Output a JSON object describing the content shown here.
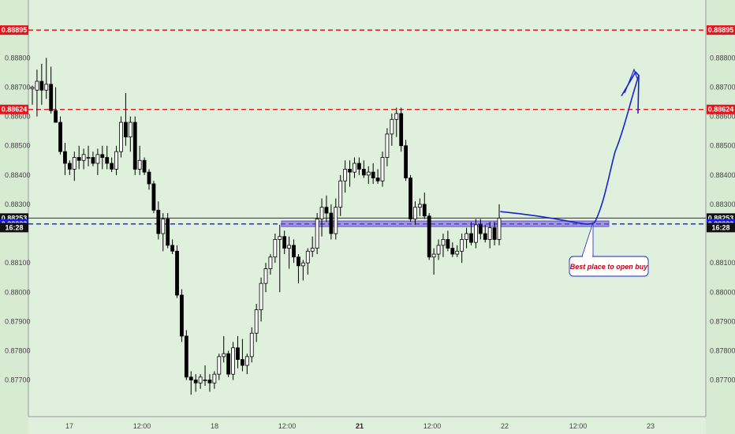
{
  "chart_data": {
    "type": "candlestick",
    "title": "",
    "colors": {
      "background": "#dff0dc",
      "bullish_body": "#ffffff",
      "bearish_body": "#000000",
      "wick": "#000000",
      "resistance": "#e8141a",
      "support": "#1a1ae8",
      "price_line": "#333333",
      "zone": "#6a4fd6",
      "projection": "#1a22cc"
    },
    "y_axis": {
      "ylim": [
        0.87645,
        0.88925
      ],
      "ticks": [
        "0.88800",
        "0.88700",
        "0.88600",
        "0.88500",
        "0.88400",
        "0.88300",
        "0.88100",
        "0.88000",
        "0.87900",
        "0.87800",
        "0.87700"
      ]
    },
    "x_axis": {
      "labels": [
        {
          "text": "17",
          "bold": false
        },
        {
          "text": "12:00",
          "bold": false
        },
        {
          "text": "18",
          "bold": false
        },
        {
          "text": "12:00",
          "bold": false
        },
        {
          "text": "21",
          "bold": true
        },
        {
          "text": "12:00",
          "bold": false
        },
        {
          "text": "22",
          "bold": false
        },
        {
          "text": "12:00",
          "bold": false
        },
        {
          "text": "23",
          "bold": false
        }
      ]
    },
    "levels": [
      {
        "name": "resistance-upper",
        "value": 0.88895,
        "label": "0.88895",
        "style": "dashed",
        "color": "#e8141a"
      },
      {
        "name": "resistance-lower",
        "value": 0.88624,
        "label": "0.88624",
        "style": "dashed",
        "color": "#e8141a"
      },
      {
        "name": "current-price",
        "value": 0.88253,
        "label": "0.88253",
        "style": "solid",
        "color": "#333333",
        "countdown": "16:28"
      },
      {
        "name": "support",
        "value": 0.88233,
        "label": "0.88233",
        "style": "dashed",
        "color": "#1a1ae8"
      }
    ],
    "annotation": {
      "text": "Best place to open buy"
    },
    "candles": [
      [
        0.88695,
        0.88705,
        0.8864,
        0.887
      ],
      [
        0.8869,
        0.8876,
        0.886,
        0.8872
      ],
      [
        0.8872,
        0.8878,
        0.8864,
        0.8869
      ],
      [
        0.8869,
        0.888,
        0.8866,
        0.8871
      ],
      [
        0.8871,
        0.8877,
        0.8861,
        0.8862
      ],
      [
        0.8862,
        0.887,
        0.8858,
        0.8858
      ],
      [
        0.8858,
        0.886,
        0.8847,
        0.8848
      ],
      [
        0.8848,
        0.8851,
        0.884,
        0.8844
      ],
      [
        0.8844,
        0.8845,
        0.884,
        0.8842
      ],
      [
        0.8842,
        0.8848,
        0.8838,
        0.8846
      ],
      [
        0.8846,
        0.885,
        0.8842,
        0.8845
      ],
      [
        0.8845,
        0.8849,
        0.8842,
        0.8847
      ],
      [
        0.8846,
        0.885,
        0.8843,
        0.8846
      ],
      [
        0.8846,
        0.8848,
        0.8843,
        0.8844
      ],
      [
        0.8844,
        0.8849,
        0.884,
        0.8847
      ],
      [
        0.8847,
        0.885,
        0.8842,
        0.8846
      ],
      [
        0.8846,
        0.885,
        0.8842,
        0.8844
      ],
      [
        0.8844,
        0.8846,
        0.8841,
        0.8842
      ],
      [
        0.8842,
        0.885,
        0.884,
        0.8848
      ],
      [
        0.8848,
        0.886,
        0.8846,
        0.8858
      ],
      [
        0.8858,
        0.8868,
        0.885,
        0.8853
      ],
      [
        0.8853,
        0.886,
        0.8848,
        0.8858
      ],
      [
        0.8858,
        0.886,
        0.884,
        0.8842
      ],
      [
        0.8842,
        0.885,
        0.884,
        0.8845
      ],
      [
        0.8845,
        0.8846,
        0.884,
        0.8841
      ],
      [
        0.8841,
        0.8842,
        0.8835,
        0.8837
      ],
      [
        0.8837,
        0.8838,
        0.8827,
        0.8828
      ],
      [
        0.8828,
        0.8831,
        0.8818,
        0.882
      ],
      [
        0.882,
        0.8827,
        0.8814,
        0.8825
      ],
      [
        0.8825,
        0.8827,
        0.8815,
        0.8816
      ],
      [
        0.8816,
        0.8818,
        0.8813,
        0.8814
      ],
      [
        0.8814,
        0.8816,
        0.8798,
        0.8799
      ],
      [
        0.8799,
        0.8801,
        0.8783,
        0.8785
      ],
      [
        0.8785,
        0.8787,
        0.877,
        0.8771
      ],
      [
        0.8771,
        0.8773,
        0.8765,
        0.877
      ],
      [
        0.877,
        0.8772,
        0.8766,
        0.8769
      ],
      [
        0.8769,
        0.8772,
        0.8767,
        0.8771
      ],
      [
        0.877,
        0.8775,
        0.8768,
        0.877
      ],
      [
        0.877,
        0.8772,
        0.8766,
        0.8769
      ],
      [
        0.8769,
        0.8773,
        0.8767,
        0.8772
      ],
      [
        0.8772,
        0.8779,
        0.877,
        0.8778
      ],
      [
        0.8778,
        0.8785,
        0.8776,
        0.8779
      ],
      [
        0.8779,
        0.878,
        0.8771,
        0.8772
      ],
      [
        0.8772,
        0.8783,
        0.877,
        0.8781
      ],
      [
        0.8781,
        0.8785,
        0.8774,
        0.8777
      ],
      [
        0.8777,
        0.8784,
        0.8773,
        0.8775
      ],
      [
        0.8775,
        0.8779,
        0.8772,
        0.8778
      ],
      [
        0.8778,
        0.8788,
        0.8776,
        0.8786
      ],
      [
        0.8786,
        0.8796,
        0.8783,
        0.8794
      ],
      [
        0.8794,
        0.8805,
        0.879,
        0.8803
      ],
      [
        0.8803,
        0.881,
        0.88,
        0.8808
      ],
      [
        0.8808,
        0.8813,
        0.8806,
        0.8812
      ],
      [
        0.8812,
        0.882,
        0.881,
        0.8818
      ],
      [
        0.8818,
        0.8823,
        0.88,
        0.8819
      ],
      [
        0.8819,
        0.8821,
        0.8813,
        0.8815
      ],
      [
        0.8815,
        0.8819,
        0.8808,
        0.8816
      ],
      [
        0.8816,
        0.8818,
        0.881,
        0.8812
      ],
      [
        0.8812,
        0.8813,
        0.8803,
        0.8809
      ],
      [
        0.8809,
        0.8811,
        0.8804,
        0.881
      ],
      [
        0.881,
        0.8815,
        0.8806,
        0.8814
      ],
      [
        0.8814,
        0.8819,
        0.8812,
        0.8815
      ],
      [
        0.8815,
        0.8827,
        0.8813,
        0.8825
      ],
      [
        0.8825,
        0.8832,
        0.8819,
        0.8829
      ],
      [
        0.8829,
        0.8833,
        0.8824,
        0.8827
      ],
      [
        0.8827,
        0.883,
        0.8818,
        0.882
      ],
      [
        0.882,
        0.8832,
        0.8818,
        0.8829
      ],
      [
        0.8829,
        0.884,
        0.8826,
        0.8838
      ],
      [
        0.8838,
        0.8845,
        0.8834,
        0.8842
      ],
      [
        0.8842,
        0.8845,
        0.8836,
        0.8841
      ],
      [
        0.8841,
        0.8846,
        0.8839,
        0.8844
      ],
      [
        0.8844,
        0.8846,
        0.884,
        0.8842
      ],
      [
        0.8842,
        0.8845,
        0.8839,
        0.884
      ],
      [
        0.884,
        0.8843,
        0.8837,
        0.8841
      ],
      [
        0.8841,
        0.8844,
        0.8837,
        0.8839
      ],
      [
        0.8839,
        0.8842,
        0.8837,
        0.8838
      ],
      [
        0.8838,
        0.8848,
        0.8836,
        0.8846
      ],
      [
        0.8846,
        0.8856,
        0.8843,
        0.8854
      ],
      [
        0.8854,
        0.8861,
        0.885,
        0.8859
      ],
      [
        0.8859,
        0.8863,
        0.8853,
        0.8861
      ],
      [
        0.8861,
        0.8863,
        0.8848,
        0.885
      ],
      [
        0.885,
        0.8852,
        0.8838,
        0.8839
      ],
      [
        0.8839,
        0.884,
        0.8824,
        0.8825
      ],
      [
        0.8825,
        0.8831,
        0.8823,
        0.8829
      ],
      [
        0.8829,
        0.8832,
        0.8826,
        0.883
      ],
      [
        0.883,
        0.8834,
        0.8825,
        0.8826
      ],
      [
        0.8826,
        0.8827,
        0.8811,
        0.8812
      ],
      [
        0.8812,
        0.8815,
        0.8806,
        0.8813
      ],
      [
        0.8813,
        0.8818,
        0.8811,
        0.8816
      ],
      [
        0.8816,
        0.882,
        0.8812,
        0.8818
      ],
      [
        0.8818,
        0.8821,
        0.8814,
        0.8815
      ],
      [
        0.8815,
        0.8817,
        0.8812,
        0.8813
      ],
      [
        0.8813,
        0.8816,
        0.8812,
        0.8814
      ],
      [
        0.8814,
        0.882,
        0.881,
        0.8818
      ],
      [
        0.8818,
        0.8822,
        0.8815,
        0.882
      ],
      [
        0.882,
        0.8824,
        0.8816,
        0.8817
      ],
      [
        0.8817,
        0.8825,
        0.8815,
        0.8823
      ],
      [
        0.8823,
        0.8825,
        0.8818,
        0.882
      ],
      [
        0.882,
        0.8823,
        0.8817,
        0.8818
      ],
      [
        0.8818,
        0.8824,
        0.8815,
        0.8822
      ],
      [
        0.8822,
        0.8824,
        0.8816,
        0.8818
      ],
      [
        0.8818,
        0.883,
        0.8816,
        0.88253
      ]
    ]
  }
}
